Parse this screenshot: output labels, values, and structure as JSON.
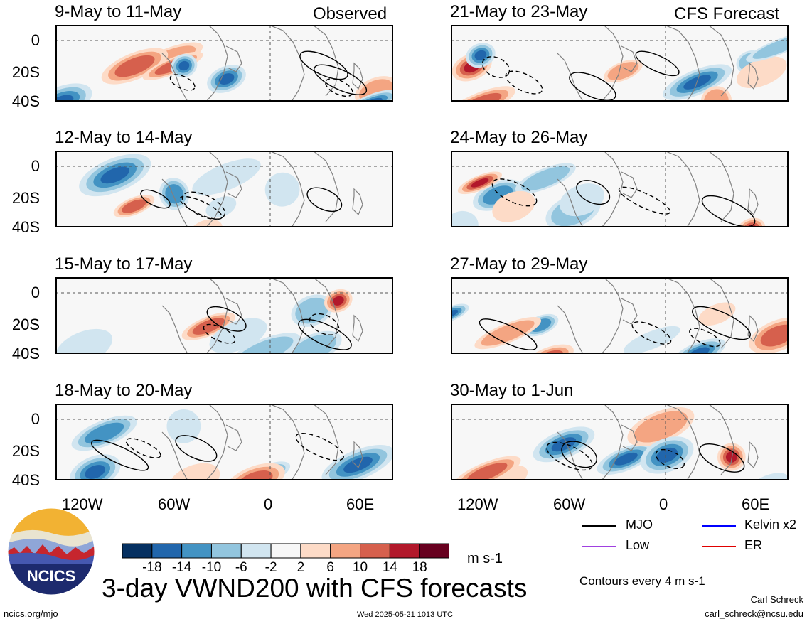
{
  "left_column_label": "Observed",
  "right_column_label": "CFS Forecast",
  "panels": [
    {
      "title": "9-May to 11-May"
    },
    {
      "title": "12-May to 14-May"
    },
    {
      "title": "15-May to 17-May"
    },
    {
      "title": "18-May to 20-May"
    },
    {
      "title": "21-May to 23-May"
    },
    {
      "title": "24-May to 26-May"
    },
    {
      "title": "27-May to 29-May"
    },
    {
      "title": "30-May to 1-Jun"
    }
  ],
  "y_ticks": [
    "0",
    "20S",
    "40S"
  ],
  "x_ticks": [
    "120W",
    "60W",
    "0",
    "60E"
  ],
  "colorbar": {
    "ticks": [
      "-18",
      "-14",
      "-10",
      "-6",
      "-2",
      "2",
      "6",
      "10",
      "14",
      "18"
    ],
    "units": "m s-1",
    "colors": [
      "#053061",
      "#2166ac",
      "#4393c3",
      "#92c5de",
      "#d1e5f0",
      "#f7f7f7",
      "#fddbc7",
      "#f4a582",
      "#d6604d",
      "#b2182b",
      "#67001f"
    ]
  },
  "title": "3-day VWND200 with CFS forecasts",
  "logo": {
    "text": "NCICS"
  },
  "legend": {
    "items": [
      {
        "label": "MJO",
        "color": "#000000"
      },
      {
        "label": "Kelvin x2",
        "color": "#0000ff"
      },
      {
        "label": "Low",
        "color": "#a040e0"
      },
      {
        "label": "ER",
        "color": "#e00000"
      }
    ],
    "note": "Contours every 4 m s-1"
  },
  "footer": {
    "url": "ncics.org/mjo",
    "timestamp": "Wed 2025-05-21 1013 UTC",
    "author": "Carl Schreck",
    "email": "carl_schreck@ncsu.edu"
  }
}
